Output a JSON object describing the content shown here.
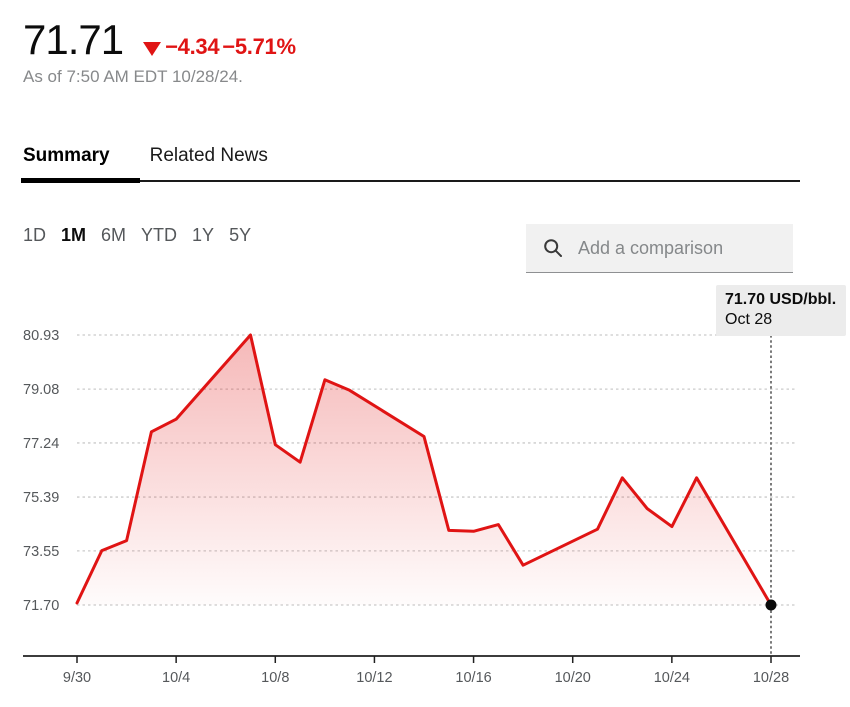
{
  "header": {
    "price": "71.71",
    "change": "−4.34",
    "change_pct": "−5.71%",
    "down_arrow_icon": "triangle-down",
    "accent_red": "#e01414",
    "as_of": "As of 7:50 AM EDT 10/28/24."
  },
  "tabs": {
    "items": [
      {
        "label": "Summary",
        "active": true
      },
      {
        "label": "Related News",
        "active": false
      }
    ]
  },
  "ranges": {
    "items": [
      {
        "label": "1D",
        "active": false
      },
      {
        "label": "1M",
        "active": true
      },
      {
        "label": "6M",
        "active": false
      },
      {
        "label": "YTD",
        "active": false
      },
      {
        "label": "1Y",
        "active": false
      },
      {
        "label": "5Y",
        "active": false
      }
    ]
  },
  "comparison": {
    "icon": "search-icon",
    "placeholder": "Add a comparison"
  },
  "tooltip": {
    "line1": "71.70 USD/bbl.",
    "line2": "Oct 28"
  },
  "chart_data": {
    "type": "area",
    "unit": "USD/bbl.",
    "line_color": "#e01414",
    "grid": "horizontal-dashed",
    "legend": "none",
    "marker_last_point": true,
    "ylim": [
      71.7,
      80.93
    ],
    "xlim_days": [
      0,
      28
    ],
    "y_ticks": [
      80.93,
      79.08,
      77.24,
      75.39,
      73.55,
      71.7
    ],
    "x_ticks": [
      {
        "label": "9/30",
        "day": 0
      },
      {
        "label": "10/4",
        "day": 4
      },
      {
        "label": "10/8",
        "day": 8
      },
      {
        "label": "10/12",
        "day": 12
      },
      {
        "label": "10/16",
        "day": 16
      },
      {
        "label": "10/20",
        "day": 20
      },
      {
        "label": "10/24",
        "day": 24
      },
      {
        "label": "10/28",
        "day": 28
      }
    ],
    "points": [
      {
        "date": "9/30",
        "day": 0,
        "value": 71.77
      },
      {
        "date": "10/1",
        "day": 1,
        "value": 73.56
      },
      {
        "date": "10/2",
        "day": 2,
        "value": 73.9
      },
      {
        "date": "10/3",
        "day": 3,
        "value": 77.62
      },
      {
        "date": "10/4",
        "day": 4,
        "value": 78.05
      },
      {
        "date": "10/7",
        "day": 7,
        "value": 80.93
      },
      {
        "date": "10/8",
        "day": 8,
        "value": 77.18
      },
      {
        "date": "10/9",
        "day": 9,
        "value": 76.58
      },
      {
        "date": "10/10",
        "day": 10,
        "value": 79.4
      },
      {
        "date": "10/11",
        "day": 11,
        "value": 79.04
      },
      {
        "date": "10/14",
        "day": 14,
        "value": 77.46
      },
      {
        "date": "10/15",
        "day": 15,
        "value": 74.25
      },
      {
        "date": "10/16",
        "day": 16,
        "value": 74.22
      },
      {
        "date": "10/17",
        "day": 17,
        "value": 74.45
      },
      {
        "date": "10/18",
        "day": 18,
        "value": 73.06
      },
      {
        "date": "10/21",
        "day": 21,
        "value": 74.29
      },
      {
        "date": "10/22",
        "day": 22,
        "value": 76.05
      },
      {
        "date": "10/23",
        "day": 23,
        "value": 75.0
      },
      {
        "date": "10/24",
        "day": 24,
        "value": 74.38
      },
      {
        "date": "10/25",
        "day": 25,
        "value": 76.05
      },
      {
        "date": "10/28",
        "day": 28,
        "value": 71.7
      }
    ]
  }
}
